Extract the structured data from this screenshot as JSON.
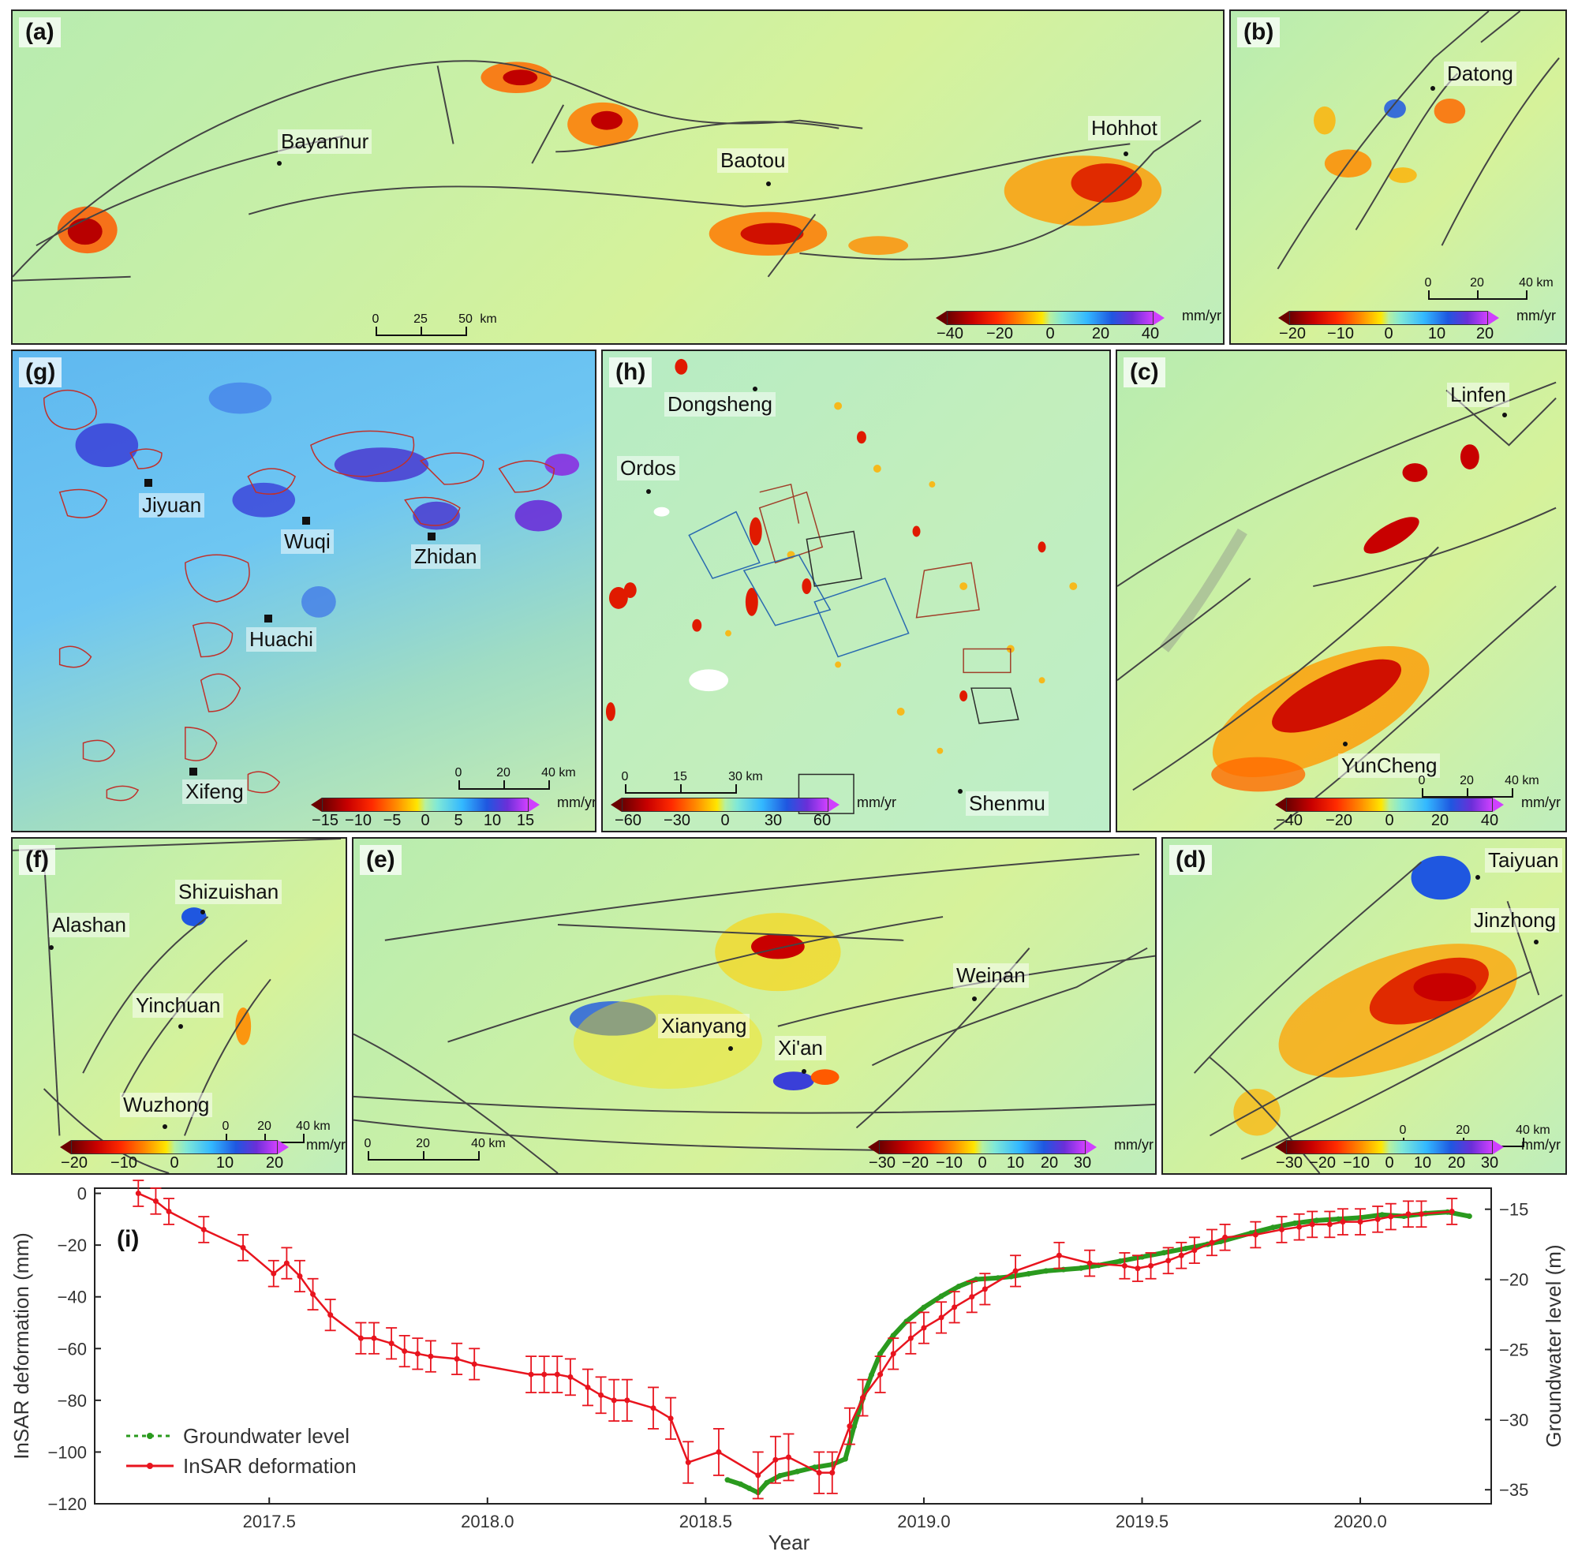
{
  "panels": {
    "a": {
      "label": "(a)",
      "cities": [
        "Bayannur",
        "Baotou",
        "Hohhot"
      ],
      "scale": {
        "ticks": [
          "0",
          "25",
          "50"
        ],
        "unit": "km"
      },
      "colorbar": {
        "ticks": [
          "−40",
          "−20",
          "0",
          "20",
          "40"
        ],
        "unit": "mm/yr"
      }
    },
    "b": {
      "label": "(b)",
      "cities": [
        "Datong"
      ],
      "scale": {
        "ticks": [
          "0",
          "20",
          "40"
        ],
        "unit": "km"
      },
      "colorbar": {
        "ticks": [
          "−20",
          "−10",
          "0",
          "10",
          "20"
        ],
        "unit": "mm/yr"
      }
    },
    "c": {
      "label": "(c)",
      "cities": [
        "Linfen",
        "YunCheng"
      ],
      "scale": {
        "ticks": [
          "0",
          "20",
          "40"
        ],
        "unit": "km"
      },
      "colorbar": {
        "ticks": [
          "−40",
          "−20",
          "0",
          "20",
          "40"
        ],
        "unit": "mm/yr"
      }
    },
    "d": {
      "label": "(d)",
      "cities": [
        "Taiyuan",
        "Jinzhong"
      ],
      "scale": {
        "ticks": [
          "0",
          "20",
          "40"
        ],
        "unit": "km"
      },
      "colorbar": {
        "ticks": [
          "−30",
          "−20",
          "−10",
          "0",
          "10",
          "20",
          "30"
        ],
        "unit": "mm/yr"
      }
    },
    "e": {
      "label": "(e)",
      "cities": [
        "Weinan",
        "Xianyang",
        "Xi'an"
      ],
      "scale": {
        "ticks": [
          "0",
          "20",
          "40"
        ],
        "unit": "km"
      },
      "colorbar": {
        "ticks": [
          "−30",
          "−20",
          "−10",
          "0",
          "10",
          "20",
          "30"
        ],
        "unit": "mm/yr"
      }
    },
    "f": {
      "label": "(f)",
      "cities": [
        "Shizuishan",
        "Alashan",
        "Yinchuan",
        "Wuzhong"
      ],
      "scale": {
        "ticks": [
          "0",
          "20",
          "40"
        ],
        "unit": "km"
      },
      "colorbar": {
        "ticks": [
          "−20",
          "−10",
          "0",
          "10",
          "20"
        ],
        "unit": "mm/yr"
      }
    },
    "g": {
      "label": "(g)",
      "cities": [
        "Jiyuan",
        "Wuqi",
        "Zhidan",
        "Huachi",
        "Xifeng"
      ],
      "scale": {
        "ticks": [
          "0",
          "20",
          "40"
        ],
        "unit": "km"
      },
      "colorbar": {
        "ticks": [
          "−15",
          "−10",
          "−5",
          "0",
          "5",
          "10",
          "15"
        ],
        "unit": "mm/yr"
      }
    },
    "h": {
      "label": "(h)",
      "cities": [
        "Dongsheng",
        "Ordos",
        "Shenmu"
      ],
      "scale": {
        "ticks": [
          "0",
          "15",
          "30"
        ],
        "unit": "km"
      },
      "colorbar": {
        "ticks": [
          "−60",
          "−30",
          "0",
          "30",
          "60"
        ],
        "unit": "mm/yr"
      }
    }
  },
  "chart_data": {
    "type": "line",
    "panel_label": "(i)",
    "xlabel": "Year",
    "ylabel": "InSAR deformation (mm)",
    "y2label": "Groundwater level (m)",
    "xlim": [
      2017.1,
      2020.3
    ],
    "ylim": [
      -120,
      2
    ],
    "y2lim": [
      -36,
      -13.5
    ],
    "xticks": [
      "2017.5",
      "2018.0",
      "2018.5",
      "2019.0",
      "2019.5",
      "2020.0"
    ],
    "yticks": [
      "0",
      "−20",
      "−40",
      "−60",
      "−80",
      "−100",
      "−120"
    ],
    "y2ticks": [
      "−15",
      "−20",
      "−25",
      "−30",
      "−35"
    ],
    "legend": [
      "Groundwater level",
      "InSAR deformation"
    ],
    "colors": {
      "insar": "#e8141e",
      "groundwater": "#2a9a1e"
    },
    "series": [
      {
        "name": "InSAR deformation",
        "axis": "left",
        "x": [
          2017.2,
          2017.24,
          2017.27,
          2017.35,
          2017.44,
          2017.51,
          2017.54,
          2017.57,
          2017.6,
          2017.64,
          2017.71,
          2017.74,
          2017.78,
          2017.81,
          2017.84,
          2017.87,
          2017.93,
          2017.97,
          2018.1,
          2018.13,
          2018.16,
          2018.19,
          2018.23,
          2018.26,
          2018.29,
          2018.32,
          2018.38,
          2018.42,
          2018.46,
          2018.53,
          2018.62,
          2018.66,
          2018.69,
          2018.76,
          2018.79,
          2018.83,
          2018.86,
          2018.9,
          2018.93,
          2018.97,
          2019.0,
          2019.04,
          2019.07,
          2019.11,
          2019.14,
          2019.21,
          2019.31,
          2019.38,
          2019.46,
          2019.49,
          2019.52,
          2019.56,
          2019.59,
          2019.62,
          2019.66,
          2019.69,
          2019.76,
          2019.82,
          2019.86,
          2019.89,
          2019.93,
          2019.96,
          2020.0,
          2020.04,
          2020.07,
          2020.11,
          2020.14,
          2020.21
        ],
        "values": [
          0,
          -3,
          -7,
          -14,
          -21,
          -31,
          -27,
          -32,
          -39,
          -47,
          -56,
          -56,
          -58,
          -61,
          -62,
          -63,
          -64,
          -66,
          -70,
          -70,
          -70,
          -71,
          -75,
          -78,
          -80,
          -80,
          -83,
          -87,
          -104,
          -100,
          -109,
          -103,
          -102,
          -108,
          -108,
          -90,
          -79,
          -70,
          -62,
          -56,
          -52,
          -48,
          -44,
          -40,
          -37,
          -30,
          -24,
          -27,
          -28,
          -29,
          -28,
          -26,
          -24,
          -22,
          -19,
          -17,
          -16,
          -14,
          -13,
          -12,
          -12,
          -11,
          -11,
          -10,
          -9,
          -8,
          -8,
          -7
        ],
        "errors": [
          5,
          5,
          5,
          5,
          5,
          5,
          6,
          6,
          6,
          6,
          6,
          6,
          6,
          6,
          6,
          6,
          6,
          6,
          7,
          7,
          7,
          7,
          7,
          7,
          8,
          8,
          8,
          8,
          8,
          9,
          9,
          9,
          9,
          8,
          8,
          7,
          7,
          7,
          6,
          6,
          6,
          6,
          6,
          6,
          6,
          6,
          5,
          5,
          5,
          5,
          5,
          5,
          5,
          5,
          5,
          5,
          5,
          5,
          5,
          5,
          5,
          5,
          5,
          5,
          5,
          5,
          5,
          5
        ]
      },
      {
        "name": "Groundwater level",
        "axis": "right",
        "x": [
          2018.55,
          2018.58,
          2018.6,
          2018.62,
          2018.64,
          2018.67,
          2018.71,
          2018.75,
          2018.79,
          2018.82,
          2018.84,
          2018.86,
          2018.88,
          2018.9,
          2018.93,
          2018.96,
          2019.0,
          2019.04,
          2019.08,
          2019.12,
          2019.17,
          2019.2,
          2019.24,
          2019.28,
          2019.32,
          2019.36,
          2019.4,
          2019.45,
          2019.5,
          2019.55,
          2019.6,
          2019.65,
          2019.68,
          2019.75,
          2019.8,
          2019.85,
          2019.9,
          2019.95,
          2020.0,
          2020.05,
          2020.1,
          2020.15,
          2020.2,
          2020.25
        ],
        "values": [
          -34.3,
          -34.6,
          -34.9,
          -35.2,
          -34.5,
          -34.0,
          -33.7,
          -33.4,
          -33.2,
          -32.8,
          -30.5,
          -28.5,
          -26.8,
          -25.3,
          -24.0,
          -23.0,
          -22.0,
          -21.2,
          -20.5,
          -20.0,
          -19.9,
          -19.8,
          -19.6,
          -19.4,
          -19.3,
          -19.2,
          -19.0,
          -18.7,
          -18.4,
          -18.1,
          -17.8,
          -17.5,
          -17.3,
          -16.7,
          -16.3,
          -16.0,
          -15.8,
          -15.7,
          -15.6,
          -15.4,
          -15.5,
          -15.3,
          -15.2,
          -15.5
        ]
      }
    ]
  }
}
